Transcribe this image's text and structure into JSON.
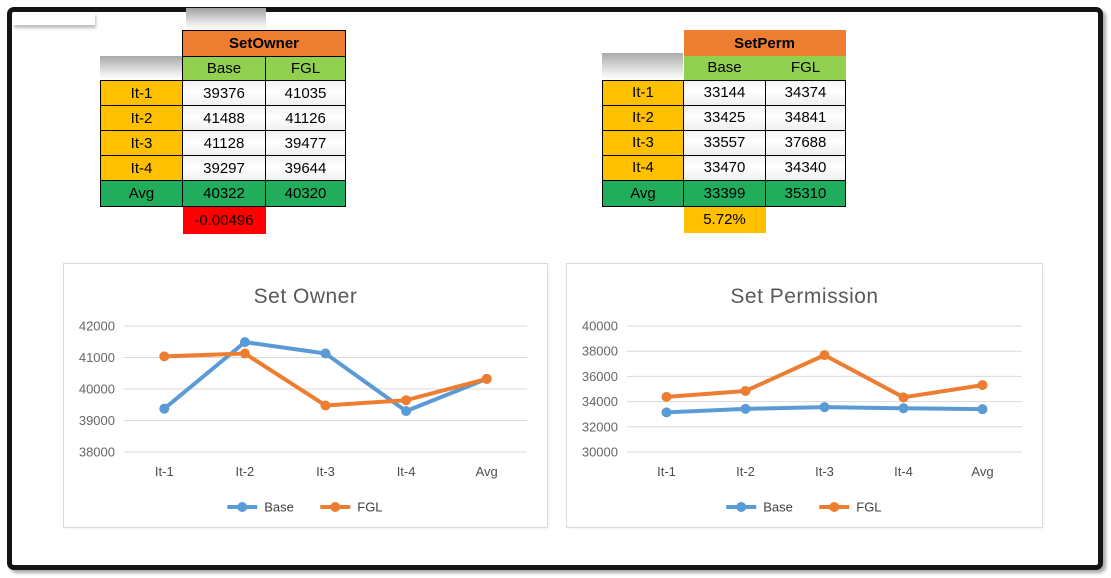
{
  "tables": [
    {
      "title": "SetOwner",
      "col_headers": [
        "Base",
        "FGL"
      ],
      "rows": [
        {
          "label": "It-1",
          "values": [
            "39376",
            "41035"
          ]
        },
        {
          "label": "It-2",
          "values": [
            "41488",
            "41126"
          ]
        },
        {
          "label": "It-3",
          "values": [
            "41128",
            "39477"
          ]
        },
        {
          "label": "It-4",
          "values": [
            "39297",
            "39644"
          ]
        }
      ],
      "avg_row": {
        "label": "Avg",
        "values": [
          "40322",
          "40320"
        ]
      },
      "delta": {
        "value": "-0.00496",
        "style": "negative"
      }
    },
    {
      "title": "SetPerm",
      "col_headers": [
        "Base",
        "FGL"
      ],
      "rows": [
        {
          "label": "It-1",
          "values": [
            "33144",
            "34374"
          ]
        },
        {
          "label": "It-2",
          "values": [
            "33425",
            "34841"
          ]
        },
        {
          "label": "It-3",
          "values": [
            "33557",
            "37688"
          ]
        },
        {
          "label": "It-4",
          "values": [
            "33470",
            "34340"
          ]
        }
      ],
      "avg_row": {
        "label": "Avg",
        "values": [
          "33399",
          "35310"
        ]
      },
      "delta": {
        "value": "5.72%",
        "style": "positive"
      }
    }
  ],
  "chart_data": [
    {
      "type": "line",
      "title": "Set Owner",
      "categories": [
        "It-1",
        "It-2",
        "It-3",
        "It-4",
        "Avg"
      ],
      "series": [
        {
          "name": "Base",
          "color": "#5B9BD5",
          "values": [
            39376,
            41488,
            41128,
            39297,
            40322
          ]
        },
        {
          "name": "FGL",
          "color": "#ED7D31",
          "values": [
            41035,
            41126,
            39477,
            39644,
            40320
          ]
        }
      ],
      "ylim": [
        38000,
        42000
      ],
      "ytick_step": 1000,
      "grid": true,
      "legend_position": "bottom"
    },
    {
      "type": "line",
      "title": "Set Permission",
      "categories": [
        "It-1",
        "It-2",
        "It-3",
        "It-4",
        "Avg"
      ],
      "series": [
        {
          "name": "Base",
          "color": "#5B9BD5",
          "values": [
            33144,
            33425,
            33557,
            33470,
            33399
          ]
        },
        {
          "name": "FGL",
          "color": "#ED7D31",
          "values": [
            34374,
            34841,
            37688,
            34340,
            35310
          ]
        }
      ],
      "ylim": [
        30000,
        40000
      ],
      "ytick_step": 2000,
      "grid": true,
      "legend_position": "bottom"
    }
  ],
  "colors": {
    "table_header_orange": "#ED7D31",
    "table_subheader_green": "#92D050",
    "row_label_yellow": "#FFC000",
    "avg_green": "#21AD5B",
    "delta_negative_bg": "#FF0000",
    "delta_positive_bg": "#FFC000",
    "series_base_blue": "#5B9BD5",
    "series_fgl_orange": "#ED7D31",
    "grid_gray": "#D9D9D9"
  }
}
